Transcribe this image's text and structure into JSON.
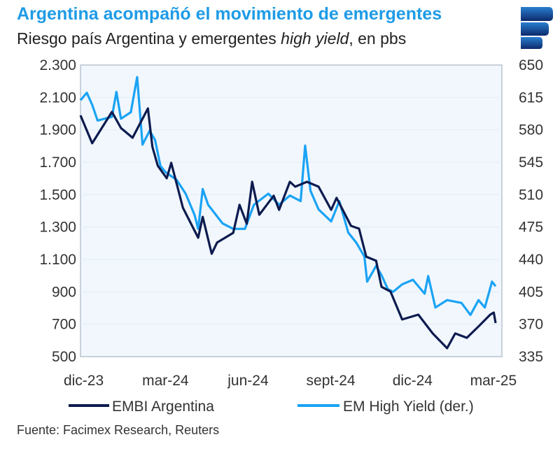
{
  "title": "Argentina acompañó el movimiento de emergentes",
  "subtitle_pre": "Riesgo país Argentina y emergentes ",
  "subtitle_italic": "high yield",
  "subtitle_post": ", en pbs",
  "source": "Fuente: Facimex Research, Reuters",
  "logo": "Facimex",
  "chart_data": {
    "type": "line",
    "title": "Argentina acompañó el movimiento de emergentes",
    "subtitle": "Riesgo país Argentina y emergentes high yield, en pbs",
    "xlim": [
      "2023-11-29",
      "2025-03-12"
    ],
    "x_ticks": [
      {
        "date": "2023-12-01",
        "label": "dic-23"
      },
      {
        "date": "2024-03-01",
        "label": "mar-24"
      },
      {
        "date": "2024-06-01",
        "label": "jun-24"
      },
      {
        "date": "2024-09-01",
        "label": "sept-24"
      },
      {
        "date": "2024-12-01",
        "label": "dic-24"
      },
      {
        "date": "2025-03-01",
        "label": "mar-25"
      }
    ],
    "y_left": {
      "range": [
        500,
        2300
      ],
      "ticks": [
        "2.300",
        "2.100",
        "1.900",
        "1.700",
        "1.500",
        "1.300",
        "1.100",
        "900",
        "700",
        "500"
      ],
      "tick_values": [
        2300,
        2100,
        1900,
        1700,
        1500,
        1300,
        1100,
        900,
        700,
        500
      ]
    },
    "y_right": {
      "range": [
        335,
        650
      ],
      "ticks": [
        "650",
        "615",
        "580",
        "545",
        "510",
        "475",
        "440",
        "405",
        "370",
        "335"
      ],
      "tick_values": [
        650,
        615,
        580,
        545,
        510,
        475,
        440,
        405,
        370,
        335
      ]
    },
    "grid": "horizontal",
    "legend_position": "bottom",
    "series": [
      {
        "name": "EMBI Argentina",
        "axis": "left",
        "color": "#0d1b4f",
        "points": [
          [
            "2023-11-29",
            1989
          ],
          [
            "2023-12-12",
            1817
          ],
          [
            "2024-01-03",
            2011
          ],
          [
            "2024-01-13",
            1911
          ],
          [
            "2024-01-26",
            1851
          ],
          [
            "2024-02-12",
            2032
          ],
          [
            "2024-02-17",
            1795
          ],
          [
            "2024-02-23",
            1678
          ],
          [
            "2024-03-04",
            1601
          ],
          [
            "2024-03-09",
            1696
          ],
          [
            "2024-03-22",
            1419
          ],
          [
            "2024-04-08",
            1234
          ],
          [
            "2024-04-13",
            1363
          ],
          [
            "2024-04-23",
            1135
          ],
          [
            "2024-04-29",
            1204
          ],
          [
            "2024-05-17",
            1264
          ],
          [
            "2024-05-24",
            1437
          ],
          [
            "2024-06-01",
            1320
          ],
          [
            "2024-06-07",
            1579
          ],
          [
            "2024-06-15",
            1376
          ],
          [
            "2024-07-01",
            1493
          ],
          [
            "2024-07-07",
            1406
          ],
          [
            "2024-07-19",
            1579
          ],
          [
            "2024-07-25",
            1549
          ],
          [
            "2024-08-07",
            1579
          ],
          [
            "2024-08-20",
            1549
          ],
          [
            "2024-09-03",
            1406
          ],
          [
            "2024-09-09",
            1480
          ],
          [
            "2024-09-25",
            1307
          ],
          [
            "2024-10-04",
            1290
          ],
          [
            "2024-10-12",
            1117
          ],
          [
            "2024-10-23",
            1092
          ],
          [
            "2024-10-29",
            931
          ],
          [
            "2024-11-08",
            902
          ],
          [
            "2024-11-21",
            729
          ],
          [
            "2024-12-09",
            759
          ],
          [
            "2024-12-25",
            643
          ],
          [
            "2025-01-10",
            552
          ],
          [
            "2025-01-19",
            643
          ],
          [
            "2025-02-01",
            616
          ],
          [
            "2025-02-14",
            686
          ],
          [
            "2025-02-27",
            759
          ],
          [
            "2025-03-03",
            772
          ],
          [
            "2025-03-05",
            707
          ]
        ]
      },
      {
        "name": "EM High Yield (der.)",
        "axis": "right",
        "color": "#1aa3f5",
        "points": [
          [
            "2023-11-29",
            612
          ],
          [
            "2023-12-06",
            620
          ],
          [
            "2023-12-12",
            607
          ],
          [
            "2023-12-18",
            590
          ],
          [
            "2024-01-03",
            594
          ],
          [
            "2024-01-08",
            621
          ],
          [
            "2024-01-13",
            592
          ],
          [
            "2024-01-24",
            599
          ],
          [
            "2024-01-31",
            637
          ],
          [
            "2024-02-06",
            564
          ],
          [
            "2024-02-14",
            579
          ],
          [
            "2024-02-20",
            569
          ],
          [
            "2024-02-26",
            541
          ],
          [
            "2024-03-03",
            534
          ],
          [
            "2024-03-15",
            526
          ],
          [
            "2024-03-25",
            511
          ],
          [
            "2024-04-04",
            488
          ],
          [
            "2024-04-08",
            473
          ],
          [
            "2024-04-13",
            516
          ],
          [
            "2024-04-19",
            499
          ],
          [
            "2024-05-05",
            479
          ],
          [
            "2024-05-17",
            473
          ],
          [
            "2024-05-30",
            473
          ],
          [
            "2024-06-09",
            499
          ],
          [
            "2024-06-25",
            511
          ],
          [
            "2024-07-07",
            499
          ],
          [
            "2024-07-19",
            509
          ],
          [
            "2024-07-31",
            503
          ],
          [
            "2024-08-05",
            563
          ],
          [
            "2024-08-11",
            514
          ],
          [
            "2024-08-20",
            494
          ],
          [
            "2024-09-03",
            481
          ],
          [
            "2024-09-12",
            503
          ],
          [
            "2024-09-22",
            469
          ],
          [
            "2024-10-01",
            458
          ],
          [
            "2024-10-10",
            443
          ],
          [
            "2024-10-13",
            416
          ],
          [
            "2024-10-23",
            433
          ],
          [
            "2024-10-29",
            423
          ],
          [
            "2024-11-05",
            408
          ],
          [
            "2024-11-11",
            405
          ],
          [
            "2024-11-21",
            413
          ],
          [
            "2024-12-03",
            418
          ],
          [
            "2024-12-16",
            403
          ],
          [
            "2024-12-20",
            422
          ],
          [
            "2024-12-28",
            388
          ],
          [
            "2025-01-10",
            396
          ],
          [
            "2025-01-26",
            393
          ],
          [
            "2025-02-05",
            380
          ],
          [
            "2025-02-14",
            396
          ],
          [
            "2025-02-21",
            388
          ],
          [
            "2025-03-01",
            416
          ],
          [
            "2025-03-05",
            411
          ]
        ]
      }
    ]
  }
}
